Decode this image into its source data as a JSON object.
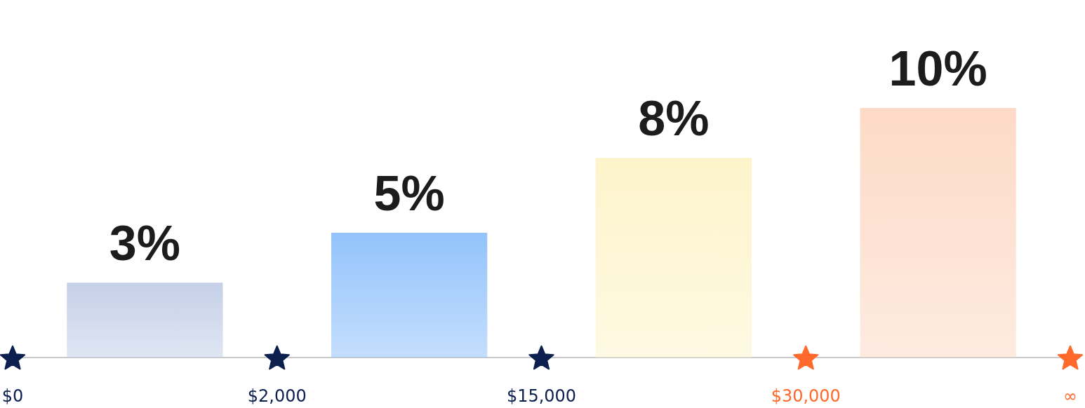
{
  "chart_data": {
    "type": "bar",
    "categories": [
      "$0",
      null,
      "$2,000",
      null,
      "$15,000",
      null,
      "$30,000",
      null,
      "∞"
    ],
    "series": [
      {
        "type": "bar",
        "values": [
          null,
          3,
          null,
          5,
          null,
          8,
          null,
          10,
          null
        ],
        "colors": [
          null,
          "#c5d0e8",
          null,
          "#93c3fb",
          null,
          "#fdf4cb",
          null,
          "#fddac7",
          null
        ],
        "value_labels": [
          null,
          "3%",
          null,
          "5%",
          null,
          "8%",
          null,
          "10%",
          null
        ]
      },
      {
        "type": "scatter",
        "x": [
          "$0",
          "$2,000",
          "$15,000",
          "$30,000",
          "∞"
        ],
        "values": [
          0,
          0,
          0,
          0,
          0
        ],
        "colors": [
          "#0d1f4e",
          "#0d1f4e",
          "#0d1f4e",
          "#ff6a2c",
          "#ff6a2c"
        ],
        "marker": "star"
      }
    ]
  }
}
